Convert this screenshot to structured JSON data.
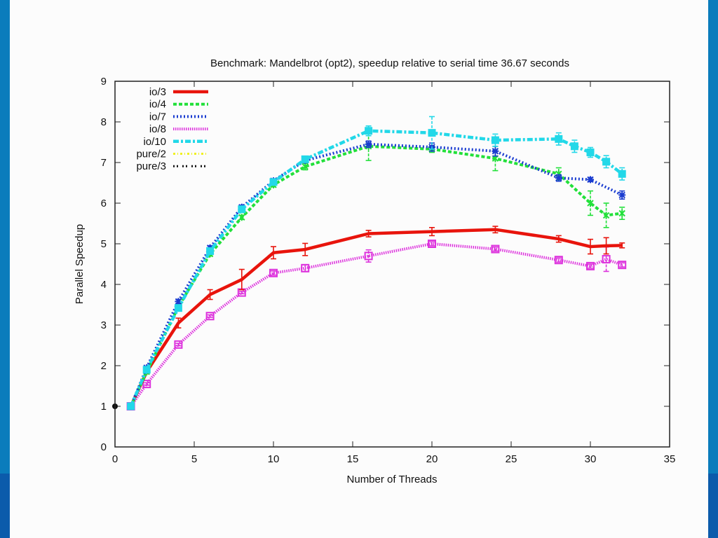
{
  "slide": {
    "border_color_top": "#0a7cbc",
    "border_color_bottom": "#0b5bab",
    "background": "#fcfcfc"
  },
  "chart_data": {
    "type": "line",
    "title": "Benchmark: Mandelbrot (opt2), speedup relative to serial time 36.67 seconds",
    "xlabel": "Number of Threads",
    "ylabel": "Parallel Speedup",
    "xlim": [
      0,
      35
    ],
    "ylim": [
      0,
      9
    ],
    "xticks": [
      "0",
      "5",
      "10",
      "15",
      "20",
      "25",
      "30",
      "35"
    ],
    "yticks": [
      "0",
      "1",
      "2",
      "3",
      "4",
      "5",
      "6",
      "7",
      "8",
      "9"
    ],
    "grid": false,
    "legend_position": "top-left",
    "series": [
      {
        "name": "io/3",
        "color": "#e8140c",
        "dash": "solid",
        "marker": "none",
        "x": [
          1,
          2,
          4,
          6,
          8,
          10,
          12,
          16,
          20,
          24,
          28,
          30,
          31,
          32
        ],
        "y": [
          1.0,
          1.85,
          3.05,
          3.75,
          4.12,
          4.78,
          4.86,
          5.25,
          5.3,
          5.35,
          5.12,
          4.93,
          4.95,
          4.96
        ],
        "err": [
          0,
          0.05,
          0.12,
          0.12,
          0.25,
          0.15,
          0.15,
          0.08,
          0.1,
          0.08,
          0.08,
          0.18,
          0.2,
          0.06
        ]
      },
      {
        "name": "io/4",
        "color": "#22e03a",
        "dash": "dashed",
        "marker": "cross",
        "x": [
          1,
          2,
          4,
          6,
          8,
          10,
          12,
          16,
          20,
          24,
          28,
          30,
          31,
          32
        ],
        "y": [
          1.0,
          1.85,
          3.45,
          4.75,
          5.65,
          6.45,
          6.9,
          7.4,
          7.33,
          7.1,
          6.72,
          6.0,
          5.7,
          5.75
        ],
        "err": [
          0,
          0.03,
          0.05,
          0.05,
          0.05,
          0.05,
          0.08,
          0.35,
          0.08,
          0.3,
          0.15,
          0.3,
          0.3,
          0.15
        ]
      },
      {
        "name": "io/7",
        "color": "#1a3cd0",
        "dash": "dotted",
        "marker": "star",
        "x": [
          1,
          2,
          4,
          6,
          8,
          10,
          12,
          16,
          20,
          24,
          28,
          30,
          32
        ],
        "y": [
          1.0,
          1.95,
          3.58,
          4.9,
          5.9,
          6.55,
          7.05,
          7.45,
          7.38,
          7.28,
          6.62,
          6.58,
          6.2
        ],
        "err": [
          0,
          0.03,
          0.05,
          0.05,
          0.05,
          0.05,
          0.05,
          0.08,
          0.1,
          0.12,
          0.08,
          0.05,
          0.1
        ]
      },
      {
        "name": "io/8",
        "color": "#dd33dd",
        "dash": "dotted-thick",
        "marker": "square",
        "x": [
          1,
          2,
          4,
          6,
          8,
          10,
          12,
          16,
          20,
          24,
          28,
          30,
          31,
          32
        ],
        "y": [
          1.0,
          1.55,
          2.52,
          3.22,
          3.8,
          4.28,
          4.4,
          4.7,
          5.0,
          4.87,
          4.6,
          4.45,
          4.62,
          4.48
        ],
        "err": [
          0,
          0.03,
          0.03,
          0.03,
          0.03,
          0.05,
          0.08,
          0.15,
          0.05,
          0.05,
          0.05,
          0.05,
          0.3,
          0.05
        ]
      },
      {
        "name": "io/10",
        "color": "#22d8e8",
        "dash": "dash-dot",
        "marker": "filled-square",
        "x": [
          1,
          2,
          4,
          6,
          8,
          10,
          12,
          16,
          20,
          24,
          28,
          29,
          30,
          31,
          32
        ],
        "y": [
          1.0,
          1.9,
          3.42,
          4.82,
          5.85,
          6.52,
          7.08,
          7.78,
          7.73,
          7.55,
          7.58,
          7.4,
          7.25,
          7.02,
          6.72
        ],
        "err": [
          0,
          0.03,
          0.05,
          0.05,
          0.05,
          0.05,
          0.05,
          0.12,
          0.4,
          0.15,
          0.15,
          0.15,
          0.12,
          0.15,
          0.15
        ]
      },
      {
        "name": "pure/2",
        "color": "#f0f020",
        "dash": "dash-dot-dot",
        "marker": "none",
        "x": [
          0
        ],
        "y": [
          1.0
        ],
        "err": [
          0
        ]
      },
      {
        "name": "pure/3",
        "color": "#111111",
        "dash": "dash-dot-sparse",
        "marker": "dot",
        "x": [
          0
        ],
        "y": [
          1.0
        ],
        "err": [
          0
        ]
      }
    ]
  }
}
